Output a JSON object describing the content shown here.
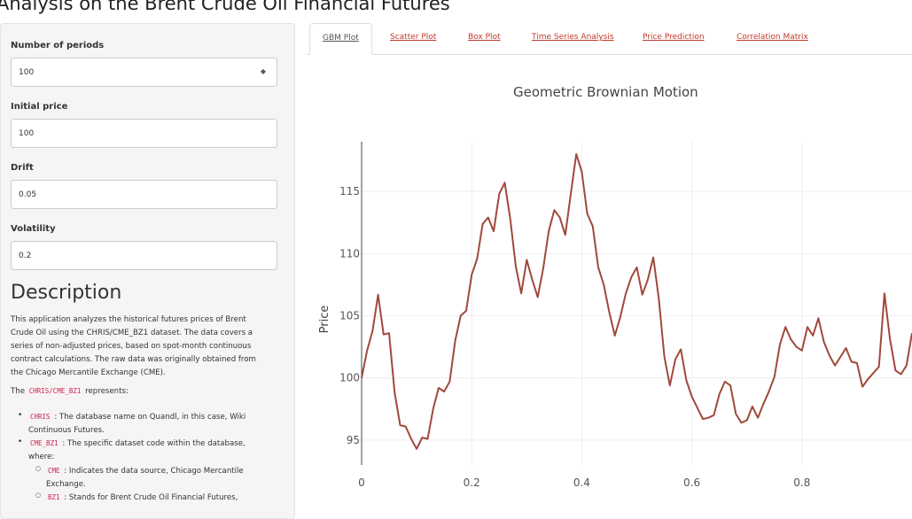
{
  "page_title": "Analysis on the Brent Crude Oil Financial Futures",
  "sidebar": {
    "periods": {
      "label": "Number of periods",
      "value": "100"
    },
    "initial_price": {
      "label": "Initial price",
      "value": "100"
    },
    "drift": {
      "label": "Drift",
      "value": "0.05"
    },
    "volatility": {
      "label": "Volatility",
      "value": "0.2"
    }
  },
  "description": {
    "heading": "Description",
    "paragraph": "This application analyzes the historical futures prices of Brent Crude Oil using the CHRIS/CME_BZ1 dataset. The data covers a series of non-adjusted prices, based on spot-month continuous contract calculations. The raw data was originally obtained from the Chicago Mercantile Exchange (CME).",
    "represents_prefix": "The",
    "represents_code": "CHRIS/CME_BZ1",
    "represents_suffix": "represents:",
    "items": [
      {
        "code": "CHRIS",
        "text": ": The database name on Quandl, in this case, Wiki Continuous Futures."
      },
      {
        "code": "CME_BZ1",
        "text": ": The specific dataset code within the database, where:"
      }
    ],
    "subitems": [
      {
        "code": "CME",
        "text": ": Indicates the data source, Chicago Mercantile Exchange."
      },
      {
        "code": "BZ1",
        "text": ": Stands for Brent Crude Oil Financial Futures,"
      }
    ]
  },
  "tabs": [
    {
      "label": "GBM Plot",
      "active": true
    },
    {
      "label": "Scatter Plot",
      "active": false
    },
    {
      "label": "Box Plot",
      "active": false
    },
    {
      "label": "Time Series Analysis",
      "active": false
    },
    {
      "label": "Price Prediction",
      "active": false
    },
    {
      "label": "Correlation Matrix",
      "active": false
    }
  ],
  "chart_data": {
    "type": "line",
    "title": "Geometric Brownian Motion",
    "xlabel": "",
    "ylabel": "Price",
    "xlim": [
      0,
      1
    ],
    "ylim": [
      93,
      119
    ],
    "x_ticks": [
      "0",
      "0.2",
      "0.4",
      "0.6",
      "0.8"
    ],
    "y_ticks": [
      "95",
      "100",
      "105",
      "110",
      "115"
    ],
    "grid": true,
    "line_color": "#a0493a",
    "series": [
      {
        "x": [
          0,
          0.01,
          0.02,
          0.03,
          0.04,
          0.05,
          0.06,
          0.07,
          0.08,
          0.09,
          0.1,
          0.11,
          0.12,
          0.13,
          0.14,
          0.15,
          0.16,
          0.17,
          0.18,
          0.19,
          0.2,
          0.21,
          0.22,
          0.23,
          0.24,
          0.25,
          0.26,
          0.27,
          0.28,
          0.29,
          0.3,
          0.31,
          0.32,
          0.33,
          0.34,
          0.35,
          0.36,
          0.37,
          0.38,
          0.39,
          0.4,
          0.41,
          0.42,
          0.43,
          0.44,
          0.45,
          0.46,
          0.47,
          0.48,
          0.49,
          0.5,
          0.51,
          0.52,
          0.53,
          0.54,
          0.55,
          0.56,
          0.57,
          0.58,
          0.59,
          0.6,
          0.61,
          0.62,
          0.63,
          0.64,
          0.65,
          0.66,
          0.67,
          0.68,
          0.69,
          0.7,
          0.71,
          0.72,
          0.73,
          0.74,
          0.75,
          0.76,
          0.77,
          0.78,
          0.79,
          0.8,
          0.81,
          0.82,
          0.83,
          0.84,
          0.85,
          0.86,
          0.87,
          0.88,
          0.89,
          0.9,
          0.91,
          0.92,
          0.93,
          0.94,
          0.95,
          0.96,
          0.97,
          0.98,
          0.99,
          1.0
        ],
        "values": [
          100,
          102.2,
          103.8,
          106.7,
          103.5,
          103.6,
          98.8,
          96.2,
          96.1,
          95.1,
          94.3,
          95.2,
          95.1,
          97.5,
          99.2,
          98.9,
          99.7,
          103.0,
          105.0,
          105.4,
          108.3,
          109.6,
          112.4,
          112.9,
          111.8,
          114.8,
          115.7,
          112.8,
          109.0,
          106.8,
          109.5,
          107.9,
          106.5,
          108.8,
          111.8,
          113.5,
          112.9,
          111.5,
          114.8,
          118.0,
          116.6,
          113.2,
          112.2,
          108.9,
          107.5,
          105.3,
          103.4,
          104.9,
          106.8,
          108.1,
          108.9,
          106.7,
          107.9,
          109.7,
          106.4,
          101.7,
          99.4,
          101.5,
          102.3,
          99.8,
          98.5,
          97.6,
          96.7,
          96.8,
          97.0,
          98.7,
          99.7,
          99.4,
          97.1,
          96.4,
          96.6,
          97.7,
          96.8,
          97.9,
          98.9,
          100.1,
          102.7,
          104.1,
          103.1,
          102.5,
          102.2,
          104.1,
          103.4,
          104.8,
          102.9,
          101.8,
          101.0,
          101.7,
          102.4,
          101.3,
          101.2,
          99.3,
          99.9,
          100.4,
          100.9,
          106.8,
          103.1,
          100.6,
          100.3,
          101.0,
          103.6
        ]
      }
    ]
  }
}
